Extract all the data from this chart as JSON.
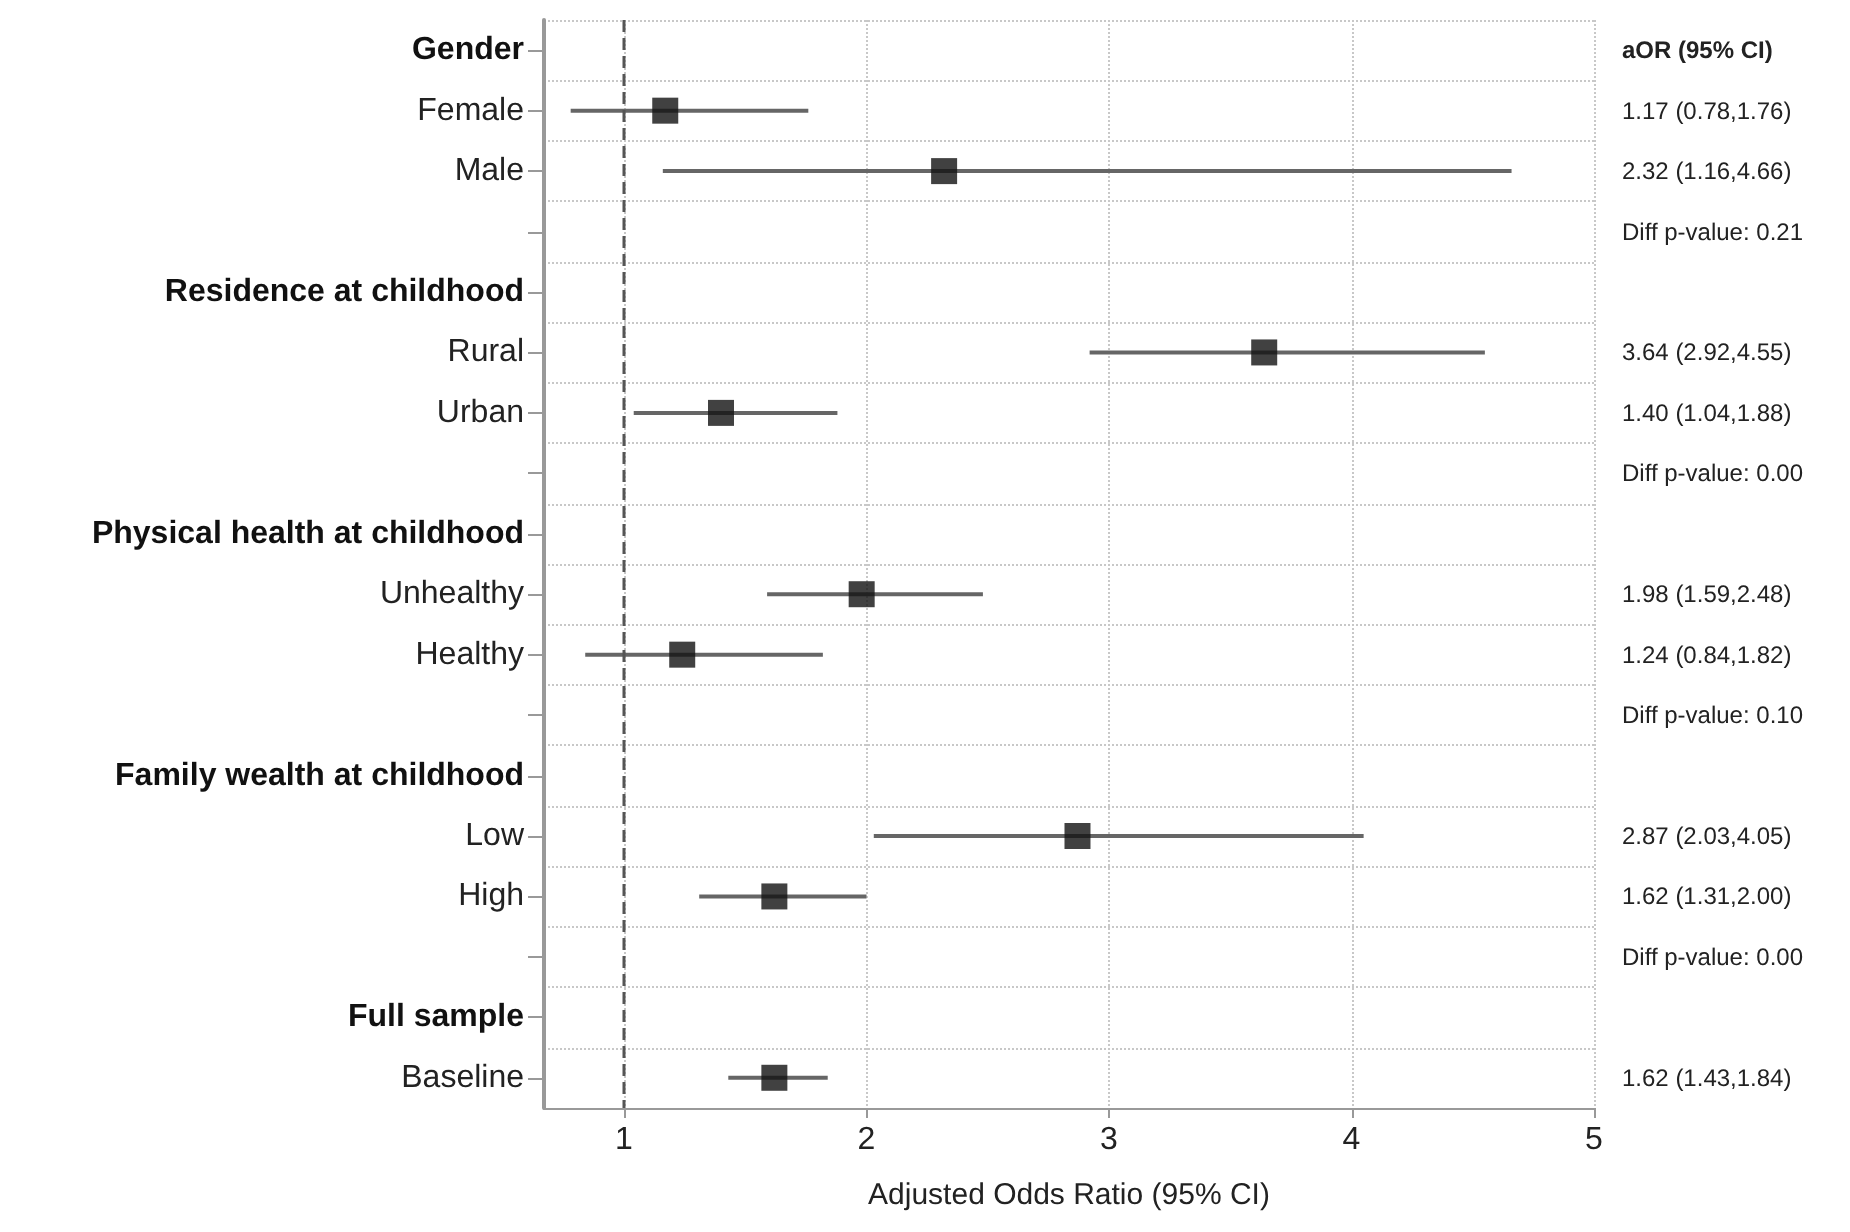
{
  "chart_data": {
    "type": "scatter",
    "orientation": "horizontal",
    "xlabel": "Adjusted Odds Ratio (95% CI)",
    "categories": [
      "Gender",
      "Female",
      "Male",
      null,
      "Residence at childhood",
      "Rural",
      "Urban",
      null,
      "Physical health at childhood",
      "Unhealthy",
      "Healthy",
      null,
      "Family wealth at childhood",
      "Low",
      "High",
      null,
      "Full sample",
      "Baseline"
    ],
    "values": [
      null,
      1.17,
      2.32,
      null,
      null,
      3.64,
      1.4,
      null,
      null,
      1.98,
      1.24,
      null,
      null,
      2.87,
      1.62,
      null,
      null,
      1.62
    ],
    "errors": [
      null,
      [
        0.78,
        1.76
      ],
      [
        1.16,
        4.66
      ],
      null,
      null,
      [
        2.92,
        4.55
      ],
      [
        1.04,
        1.88
      ],
      null,
      null,
      [
        1.59,
        2.48
      ],
      [
        0.84,
        1.82
      ],
      null,
      null,
      [
        2.03,
        4.05
      ],
      [
        1.31,
        2.0
      ],
      null,
      null,
      [
        1.43,
        1.84
      ]
    ],
    "value_labels": [
      null,
      "1.17 (0.78,1.76)",
      "2.32 (1.16,4.66)",
      null,
      null,
      "3.64 (2.92,4.55)",
      "1.40 (1.04,1.88)",
      null,
      null,
      "1.98 (1.59,2.48)",
      "1.24 (0.84,1.82)",
      null,
      null,
      "2.87 (2.03,4.05)",
      "1.62 (1.31,2.00)",
      null,
      null,
      "1.62 (1.43,1.84)"
    ],
    "annotations": [
      "aOR (95% CI)",
      "Diff p-value: 0.21",
      "Diff p-value: 0.00",
      "Diff p-value: 0.10",
      "Diff p-value: 0.00"
    ],
    "color": "#111111",
    "marker": "square",
    "xlim": [
      0.67,
      5
    ],
    "xticks": [
      1,
      2,
      3,
      4,
      5
    ],
    "grid": true,
    "ref_lines": [
      {
        "axis": "x",
        "value": 1,
        "line_style": "dashed",
        "color": "#555555"
      }
    ]
  }
}
